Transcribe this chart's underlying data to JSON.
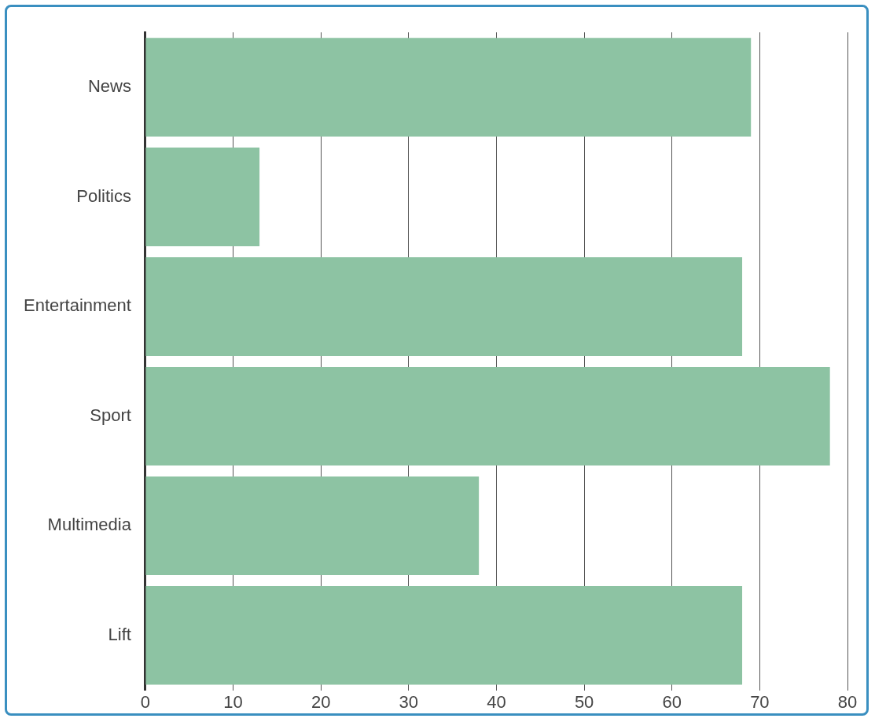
{
  "chart_data": {
    "type": "bar",
    "orientation": "horizontal",
    "categories": [
      "News",
      "Politics",
      "Entertainment",
      "Sport",
      "Multimedia",
      "Lift"
    ],
    "values": [
      69,
      13,
      68,
      78,
      38,
      68
    ],
    "color": "#8dc3a3",
    "xlim": [
      0,
      80
    ],
    "xticks": [
      0,
      10,
      20,
      30,
      40,
      50,
      60,
      70,
      80
    ],
    "grid": "x"
  }
}
